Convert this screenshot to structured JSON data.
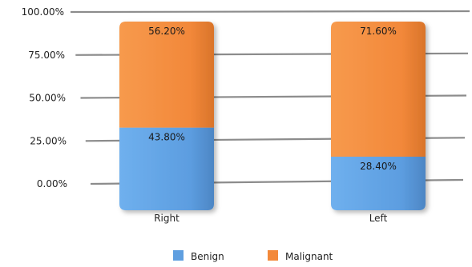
{
  "chart_data": {
    "type": "bar",
    "stacked": true,
    "percent_stacked": true,
    "categories": [
      "Right",
      "Left"
    ],
    "series": [
      {
        "name": "Benign",
        "values": [
          43.8,
          28.4
        ],
        "labels": [
          "43.80%",
          "28.40%"
        ],
        "color": "#5f9fe0"
      },
      {
        "name": "Malignant",
        "values": [
          56.2,
          71.6
        ],
        "labels": [
          "56.20%",
          "71.60%"
        ],
        "color": "#f3893a"
      }
    ],
    "y_ticks": [
      "0.00%",
      "25.00%",
      "50.00%",
      "75.00%",
      "100.00%"
    ],
    "ylim": [
      0,
      100
    ],
    "grid": true,
    "legend_position": "bottom"
  }
}
